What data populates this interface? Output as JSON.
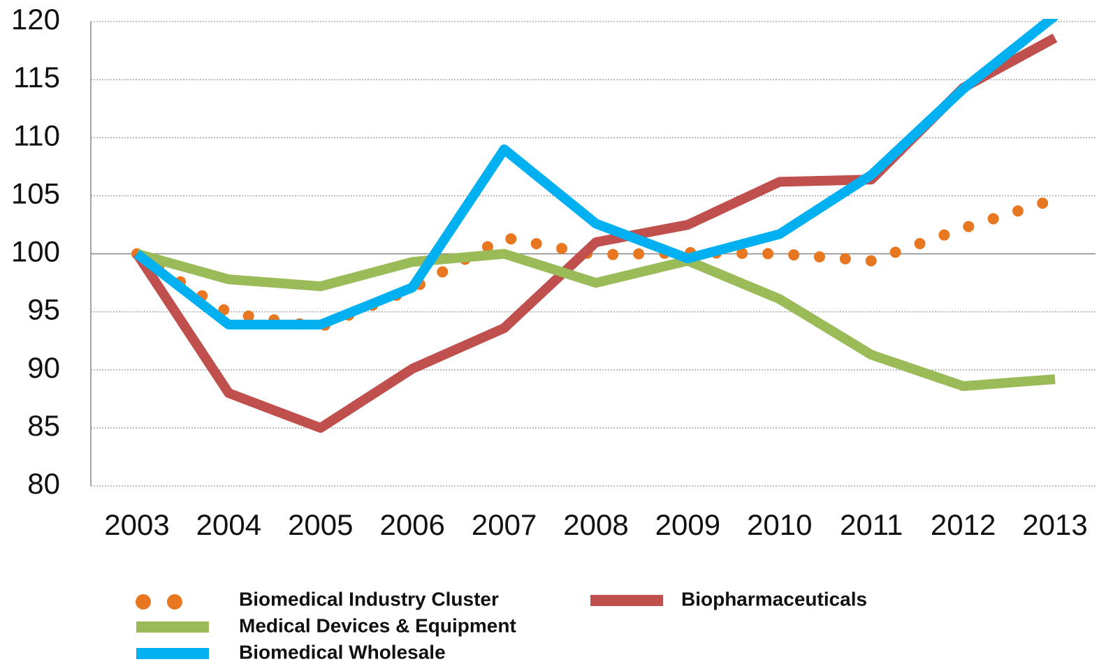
{
  "chart_data": {
    "type": "line",
    "categories": [
      "2003",
      "2004",
      "2005",
      "2006",
      "2007",
      "2008",
      "2009",
      "2010",
      "2011",
      "2012",
      "2013"
    ],
    "series": [
      {
        "name": "Biomedical  Industry Cluster",
        "color": "#e87722",
        "line_style": "dotted",
        "values": [
          100,
          94.9,
          93.7,
          97.0,
          101.4,
          99.9,
          100.1,
          100.0,
          99.4,
          102.2,
          104.7
        ]
      },
      {
        "name": "Biopharmaceuticals",
        "color": "#c0504d",
        "line_style": "solid",
        "values": [
          100,
          88.0,
          85.0,
          90.1,
          93.6,
          101.0,
          102.5,
          106.2,
          106.4,
          114.3,
          118.6
        ]
      },
      {
        "name": "Medical Devices & Equipment",
        "color": "#9bbb59",
        "line_style": "solid",
        "values": [
          100,
          97.8,
          97.2,
          99.3,
          100.0,
          97.5,
          99.4,
          96.1,
          91.3,
          88.6,
          89.2
        ]
      },
      {
        "name": "Biomedical Wholesale",
        "color": "#00b0f0",
        "line_style": "solid",
        "values": [
          100,
          93.9,
          93.9,
          97.1,
          109.0,
          102.6,
          99.6,
          101.7,
          106.8,
          114.2,
          120.5
        ]
      }
    ],
    "ylim": [
      80,
      120
    ],
    "yticks": [
      80,
      85,
      90,
      95,
      100,
      105,
      110,
      115,
      120
    ],
    "reference_line": 100,
    "grid": true
  }
}
